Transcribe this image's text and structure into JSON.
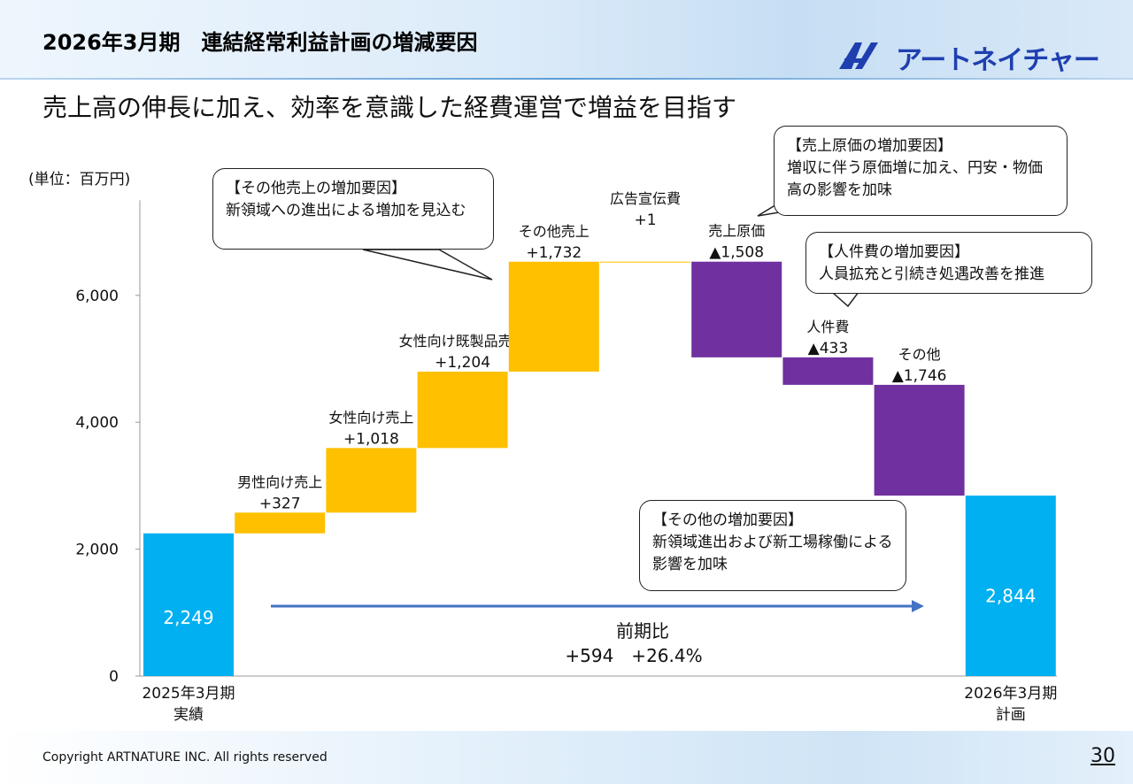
{
  "slide": {
    "title": "2026年3月期　連結経常利益計画の増減要因",
    "subtitle": "売上高の伸長に加え、効率を意識した経費運営で増益を目指す",
    "brand": "アートネイチャー",
    "unit": "(単位：百万円)",
    "footer": "Copyright ARTNATURE INC. All rights reserved",
    "page": "30"
  },
  "callouts": {
    "other_sales": {
      "title": "【その他売上の増加要因】",
      "body": "新領域への進出による増加を見込む"
    },
    "cogs": {
      "title": "【売上原価の増加要因】",
      "body": "増収に伴う原価増に加え、円安・物価高の影響を加味"
    },
    "personnel": {
      "title": "【人件費の増加要因】",
      "body": "人員拡充と引続き処遇改善を推進"
    },
    "others": {
      "title": "【その他の増加要因】",
      "body": "新領域進出および新工場稼働による影響を加味"
    }
  },
  "colors": {
    "total": "#00b0f0",
    "increase": "#ffc000",
    "decrease": "#7030a0",
    "arrow": "#4472c4"
  },
  "chart_data": {
    "type": "waterfall",
    "ylim": [
      0,
      7500
    ],
    "yticks": [
      "0",
      "2,000",
      "4,000",
      "6,000"
    ],
    "ytick_values": [
      0,
      2000,
      4000,
      6000
    ],
    "bars": [
      {
        "kind": "total",
        "value": 2249,
        "label": "2,249",
        "category": [
          "2025年3月期",
          "実績"
        ]
      },
      {
        "kind": "increase",
        "value": 327,
        "name": "男性向け売上",
        "label": "+327"
      },
      {
        "kind": "increase",
        "value": 1018,
        "name": "女性向け売上",
        "label": "+1,018"
      },
      {
        "kind": "increase",
        "value": 1204,
        "name": "女性向け既製品売上",
        "label": "+1,204"
      },
      {
        "kind": "increase",
        "value": 1732,
        "name": "その他売上",
        "label": "+1,732"
      },
      {
        "kind": "increase",
        "value": 1,
        "name": "広告宣伝費",
        "label": "+1"
      },
      {
        "kind": "decrease",
        "value": 1508,
        "name": "売上原価",
        "label": "▲1,508"
      },
      {
        "kind": "decrease",
        "value": 433,
        "name": "人件費",
        "label": "▲433"
      },
      {
        "kind": "decrease",
        "value": 1746,
        "name": "その他",
        "label": "▲1,746"
      },
      {
        "kind": "total",
        "value": 2844,
        "label": "2,844",
        "category": [
          "2026年3月期",
          "計画"
        ]
      }
    ],
    "comparison": {
      "title": "前期比",
      "value": "+594　+26.4%"
    }
  }
}
